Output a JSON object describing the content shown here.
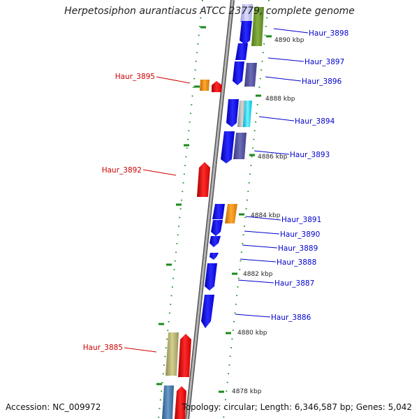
{
  "title": "Herpetosiphon aurantiacus ATCC 23779, complete genome",
  "accession_label": "Accession: NC_009972",
  "topology_label": "Topology: circular; Length: 6,346,587 bp; Genes: 5,042",
  "position_labels": [
    "4890 kbp",
    "4888 kbp",
    "4886 kbp",
    "4884 kbp",
    "4882 kbp",
    "4880 kbp",
    "4878 kbp"
  ],
  "right_gene_labels": [
    "Haur_3898",
    "Haur_3897",
    "Haur_3896",
    "Haur_3894",
    "Haur_3893",
    "Haur_3891",
    "Haur_3890",
    "Haur_3889",
    "Haur_3888",
    "Haur_3887",
    "Haur_3886"
  ],
  "left_gene_labels": [
    "Haur_3895",
    "Haur_3892",
    "Haur_3885"
  ],
  "colors": {
    "forward_strand": "#0000ee",
    "reverse_strand": "#ee0000",
    "label_right": "#0000cc",
    "label_left": "#cc0000",
    "tick": "#1a8a1a",
    "backbone": "#888888"
  }
}
